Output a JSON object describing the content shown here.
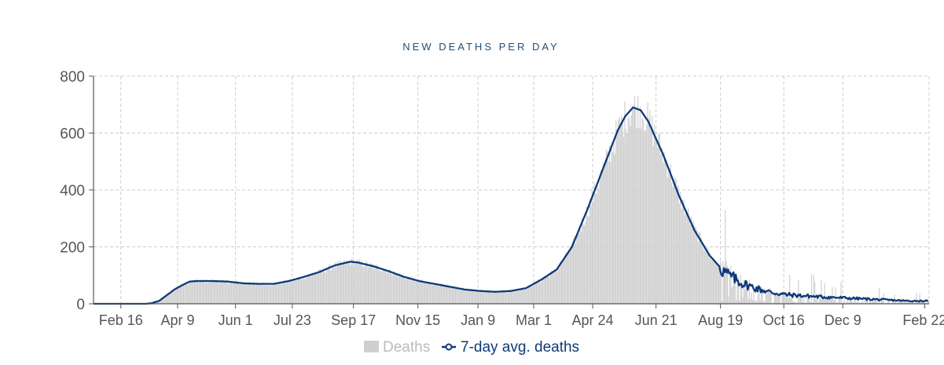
{
  "chart_data": {
    "type": "bar",
    "title": "NEW DEATHS PER DAY",
    "xlabel": "",
    "ylabel": "",
    "ylim": [
      0,
      800
    ],
    "y_ticks": [
      0,
      200,
      400,
      600,
      800
    ],
    "x_ticks": [
      "Feb 16",
      "Apr 9",
      "Jun 1",
      "Jul 23",
      "Sep 17",
      "Nov 15",
      "Jan 9",
      "Mar 1",
      "Apr 24",
      "Jun 21",
      "Aug 19",
      "Oct 16",
      "Dec 9",
      "Feb 22"
    ],
    "x_range": [
      "2020-01-22",
      "2022-02-25"
    ],
    "grid": true,
    "legend_position": "bottom-center",
    "colors": {
      "bars": "#cfcfcf",
      "line": "#0d3a78",
      "grid": "#cccccc",
      "axis": "#555555",
      "title": "#1f4e79"
    },
    "series": [
      {
        "name": "Deaths",
        "kind": "bar"
      },
      {
        "name": "7-day avg. deaths",
        "kind": "line",
        "points": [
          [
            "2020-01-22",
            0
          ],
          [
            "2020-03-10",
            0
          ],
          [
            "2020-03-15",
            2
          ],
          [
            "2020-03-22",
            10
          ],
          [
            "2020-03-29",
            30
          ],
          [
            "2020-04-05",
            50
          ],
          [
            "2020-04-12",
            65
          ],
          [
            "2020-04-19",
            78
          ],
          [
            "2020-04-26",
            80
          ],
          [
            "2020-05-10",
            80
          ],
          [
            "2020-05-24",
            78
          ],
          [
            "2020-06-07",
            72
          ],
          [
            "2020-06-21",
            70
          ],
          [
            "2020-07-05",
            70
          ],
          [
            "2020-07-19",
            80
          ],
          [
            "2020-08-02",
            95
          ],
          [
            "2020-08-16",
            112
          ],
          [
            "2020-08-30",
            135
          ],
          [
            "2020-09-13",
            148
          ],
          [
            "2020-09-20",
            145
          ],
          [
            "2020-10-04",
            132
          ],
          [
            "2020-10-18",
            115
          ],
          [
            "2020-11-01",
            95
          ],
          [
            "2020-11-15",
            80
          ],
          [
            "2020-11-29",
            70
          ],
          [
            "2020-12-13",
            60
          ],
          [
            "2020-12-27",
            50
          ],
          [
            "2021-01-10",
            45
          ],
          [
            "2021-01-24",
            42
          ],
          [
            "2021-02-07",
            45
          ],
          [
            "2021-02-21",
            55
          ],
          [
            "2021-03-07",
            85
          ],
          [
            "2021-03-21",
            120
          ],
          [
            "2021-04-04",
            200
          ],
          [
            "2021-04-18",
            330
          ],
          [
            "2021-05-02",
            470
          ],
          [
            "2021-05-16",
            610
          ],
          [
            "2021-05-23",
            660
          ],
          [
            "2021-05-30",
            690
          ],
          [
            "2021-06-06",
            680
          ],
          [
            "2021-06-13",
            640
          ],
          [
            "2021-06-27",
            520
          ],
          [
            "2021-07-11",
            380
          ],
          [
            "2021-07-25",
            260
          ],
          [
            "2021-08-08",
            170
          ],
          [
            "2021-08-22",
            110
          ],
          [
            "2021-09-05",
            75
          ],
          [
            "2021-09-19",
            55
          ],
          [
            "2021-10-03",
            40
          ],
          [
            "2021-10-17",
            32
          ],
          [
            "2021-11-14",
            25
          ],
          [
            "2021-12-12",
            20
          ],
          [
            "2022-01-09",
            15
          ],
          [
            "2022-02-06",
            10
          ],
          [
            "2022-02-20",
            10
          ]
        ]
      }
    ]
  },
  "legend": {
    "bars_label": "Deaths",
    "line_label": "7-day avg. deaths"
  }
}
